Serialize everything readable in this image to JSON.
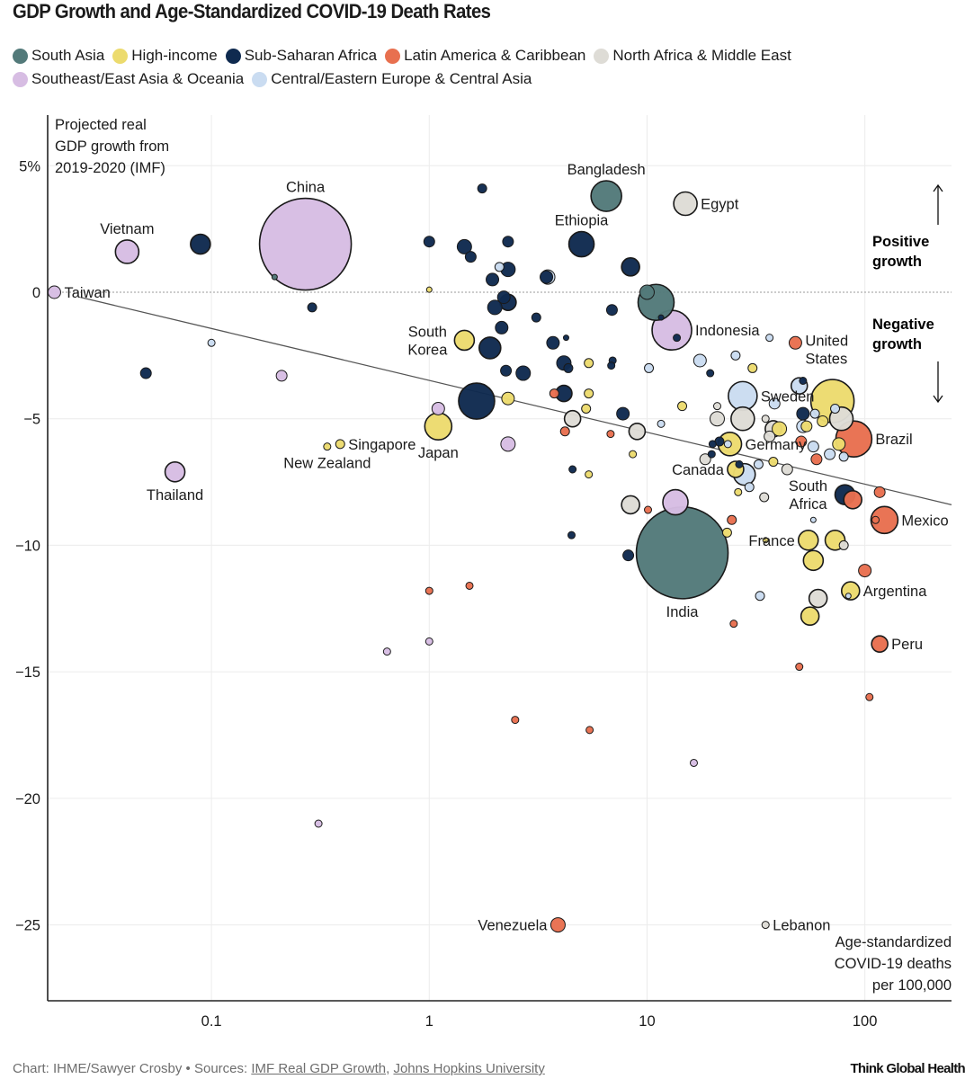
{
  "title": "GDP Growth and Age-Standardized COVID-19 Death Rates",
  "legend": [
    {
      "key": "south_asia",
      "label": "South Asia",
      "color": "#537a7a"
    },
    {
      "key": "high_income",
      "label": "High-income",
      "color": "#ecdb6e"
    },
    {
      "key": "ssa",
      "label": "Sub-Saharan Africa",
      "color": "#0f2a4f"
    },
    {
      "key": "latam",
      "label": "Latin America & Caribbean",
      "color": "#e8704f"
    },
    {
      "key": "mena",
      "label": "North Africa & Middle East",
      "color": "#dedcd6"
    },
    {
      "key": "seasia",
      "label": "Southeast/East Asia & Oceania",
      "color": "#d7bde3"
    },
    {
      "key": "cee",
      "label": "Central/Eastern Europe & Central Asia",
      "color": "#cadcf1"
    }
  ],
  "annotations": {
    "positive_growth": [
      "Positive",
      "growth"
    ],
    "negative_growth": [
      "Negative",
      "growth"
    ]
  },
  "footer": {
    "prefix": "Chart: IHME/Sawyer Crosby • Sources: ",
    "link1": "IMF Real GDP Growth",
    "separator": ", ",
    "link2": "Johns Hopkins University",
    "brand": "Think Global Health"
  },
  "chart_data": {
    "type": "scatter",
    "subtype": "bubble",
    "title": "GDP Growth and Age-Standardized COVID-19 Death Rates",
    "ylabel": [
      "Projected real",
      "GDP growth from",
      "2019-2020 (IMF)"
    ],
    "xlabel": [
      "Age-standardized",
      "COVID-19 deaths",
      "per 100,000"
    ],
    "xscale": "log",
    "xlim": [
      0.0177,
      250
    ],
    "ylim": [
      -28,
      7
    ],
    "xticks": [
      {
        "v": 0.1,
        "label": "0.1"
      },
      {
        "v": 1,
        "label": "1"
      },
      {
        "v": 10,
        "label": "10"
      },
      {
        "v": 100,
        "label": "100"
      }
    ],
    "yticks": [
      {
        "v": 5,
        "label": "5%"
      },
      {
        "v": 0,
        "label": "0"
      },
      {
        "v": -5,
        "label": "−5"
      },
      {
        "v": -10,
        "label": "−10"
      },
      {
        "v": -15,
        "label": "−15"
      },
      {
        "v": -20,
        "label": "−20"
      },
      {
        "v": -25,
        "label": "−25"
      }
    ],
    "grid": true,
    "zero_line": "dotted",
    "trendline": {
      "x0": 0.025,
      "y0": -0.2,
      "x1": 250,
      "y1": -8.4
    },
    "legend_position": "top",
    "size_note": "bubble area proportional to population",
    "points": [
      {
        "x": 0.019,
        "y": 0.0,
        "r": 7,
        "g": "seasia",
        "label": "Taiwan",
        "lpos": "right"
      },
      {
        "x": 0.041,
        "y": 1.6,
        "r": 13,
        "g": "seasia",
        "label": "Vietnam",
        "lpos": "top"
      },
      {
        "x": 0.089,
        "y": 1.9,
        "r": 11,
        "g": "ssa"
      },
      {
        "x": 0.27,
        "y": 1.9,
        "r": 51,
        "g": "seasia",
        "label": "China",
        "lpos": "top"
      },
      {
        "x": 0.195,
        "y": 0.6,
        "r": 3,
        "g": "south_asia"
      },
      {
        "x": 0.29,
        "y": -0.6,
        "r": 5,
        "g": "ssa"
      },
      {
        "x": 0.05,
        "y": -3.2,
        "r": 6,
        "g": "ssa"
      },
      {
        "x": 0.1,
        "y": -2.0,
        "r": 4,
        "g": "cee"
      },
      {
        "x": 0.21,
        "y": -3.3,
        "r": 6,
        "g": "seasia"
      },
      {
        "x": 0.068,
        "y": -7.1,
        "r": 11,
        "g": "seasia",
        "label": "Thailand",
        "lpos": "bottom"
      },
      {
        "x": 0.34,
        "y": -6.1,
        "r": 4,
        "g": "high_income",
        "label": "New Zealand",
        "lpos": "bottom"
      },
      {
        "x": 0.39,
        "y": -6.0,
        "r": 5,
        "g": "high_income",
        "label": "Singapore",
        "lpos": "right"
      },
      {
        "x": 1.1,
        "y": -4.6,
        "r": 7,
        "g": "seasia"
      },
      {
        "x": 1.1,
        "y": -5.3,
        "r": 15,
        "g": "high_income",
        "label": "Japan",
        "lpos": "bottom"
      },
      {
        "x": 1.45,
        "y": -1.9,
        "r": 11,
        "g": "high_income",
        "label": "South Korea",
        "lpos": "left"
      },
      {
        "x": 1.65,
        "y": -4.3,
        "r": 20,
        "g": "ssa"
      },
      {
        "x": 2.3,
        "y": -4.2,
        "r": 7,
        "g": "high_income"
      },
      {
        "x": 2.3,
        "y": -6.0,
        "r": 8,
        "g": "seasia"
      },
      {
        "x": 1.0,
        "y": 0.1,
        "r": 3,
        "g": "high_income"
      },
      {
        "x": 1.0,
        "y": 2.0,
        "r": 6,
        "g": "ssa"
      },
      {
        "x": 1.75,
        "y": 4.1,
        "r": 5,
        "g": "ssa"
      },
      {
        "x": 1.45,
        "y": 1.8,
        "r": 8,
        "g": "ssa"
      },
      {
        "x": 1.55,
        "y": 1.4,
        "r": 6,
        "g": "ssa"
      },
      {
        "x": 2.3,
        "y": 2.0,
        "r": 6,
        "g": "ssa"
      },
      {
        "x": 2.1,
        "y": 1.0,
        "r": 5,
        "g": "cee"
      },
      {
        "x": 2.3,
        "y": 0.9,
        "r": 8,
        "g": "ssa"
      },
      {
        "x": 1.95,
        "y": 0.5,
        "r": 7,
        "g": "ssa"
      },
      {
        "x": 2.2,
        "y": -0.2,
        "r": 7,
        "g": "ssa"
      },
      {
        "x": 2.0,
        "y": -0.6,
        "r": 8,
        "g": "ssa"
      },
      {
        "x": 2.3,
        "y": -0.4,
        "r": 9,
        "g": "ssa"
      },
      {
        "x": 2.15,
        "y": -1.4,
        "r": 7,
        "g": "ssa"
      },
      {
        "x": 1.9,
        "y": -2.2,
        "r": 12,
        "g": "ssa"
      },
      {
        "x": 2.25,
        "y": -3.1,
        "r": 6,
        "g": "ssa"
      },
      {
        "x": 2.7,
        "y": -3.2,
        "r": 8,
        "g": "ssa"
      },
      {
        "x": 3.5,
        "y": 0.6,
        "r": 8,
        "g": "cee"
      },
      {
        "x": 3.45,
        "y": 0.6,
        "r": 7,
        "g": "ssa"
      },
      {
        "x": 3.1,
        "y": -1.0,
        "r": 5,
        "g": "ssa"
      },
      {
        "x": 3.7,
        "y": -2.0,
        "r": 7,
        "g": "ssa"
      },
      {
        "x": 4.25,
        "y": -1.8,
        "r": 3,
        "g": "ssa"
      },
      {
        "x": 4.15,
        "y": -2.8,
        "r": 8,
        "g": "ssa"
      },
      {
        "x": 4.35,
        "y": -3.0,
        "r": 5,
        "g": "ssa"
      },
      {
        "x": 3.75,
        "y": -4.0,
        "r": 5,
        "g": "latam"
      },
      {
        "x": 4.15,
        "y": -4.0,
        "r": 9,
        "g": "ssa"
      },
      {
        "x": 5.4,
        "y": -2.8,
        "r": 5,
        "g": "high_income"
      },
      {
        "x": 6.95,
        "y": -2.7,
        "r": 4,
        "g": "ssa"
      },
      {
        "x": 6.85,
        "y": -2.9,
        "r": 4,
        "g": "ssa"
      },
      {
        "x": 5.4,
        "y": -4.0,
        "r": 5,
        "g": "high_income"
      },
      {
        "x": 5.25,
        "y": -4.6,
        "r": 5,
        "g": "high_income"
      },
      {
        "x": 4.55,
        "y": -5.0,
        "r": 9,
        "g": "mena"
      },
      {
        "x": 4.2,
        "y": -5.5,
        "r": 5,
        "g": "latam"
      },
      {
        "x": 6.9,
        "y": -0.7,
        "r": 6,
        "g": "ssa"
      },
      {
        "x": 5.0,
        "y": 1.9,
        "r": 14,
        "g": "ssa",
        "label": "Ethiopia",
        "lpos": "top"
      },
      {
        "x": 6.5,
        "y": 3.8,
        "r": 17,
        "g": "south_asia",
        "label": "Bangladesh",
        "lpos": "top"
      },
      {
        "x": 8.4,
        "y": 1.0,
        "r": 10,
        "g": "ssa"
      },
      {
        "x": 15.0,
        "y": 3.5,
        "r": 13,
        "g": "mena",
        "label": "Egypt",
        "lpos": "right"
      },
      {
        "x": 11.0,
        "y": -0.4,
        "r": 20,
        "g": "south_asia"
      },
      {
        "x": 10.0,
        "y": 0.0,
        "r": 8,
        "g": "south_asia"
      },
      {
        "x": 13.0,
        "y": -1.5,
        "r": 22,
        "g": "seasia",
        "label": "Indonesia",
        "lpos": "right"
      },
      {
        "x": 13.7,
        "y": -1.8,
        "r": 4,
        "g": "ssa"
      },
      {
        "x": 11.6,
        "y": -1.0,
        "r": 3,
        "g": "ssa"
      },
      {
        "x": 10.2,
        "y": -3.0,
        "r": 5,
        "g": "cee"
      },
      {
        "x": 7.75,
        "y": -4.8,
        "r": 7,
        "g": "ssa"
      },
      {
        "x": 9.0,
        "y": -5.5,
        "r": 9,
        "g": "mena"
      },
      {
        "x": 6.8,
        "y": -5.6,
        "r": 4,
        "g": "latam"
      },
      {
        "x": 5.4,
        "y": -7.2,
        "r": 4,
        "g": "high_income"
      },
      {
        "x": 4.55,
        "y": -7.0,
        "r": 4,
        "g": "ssa"
      },
      {
        "x": 8.6,
        "y": -6.4,
        "r": 4,
        "g": "high_income"
      },
      {
        "x": 11.6,
        "y": -5.2,
        "r": 4,
        "g": "cee"
      },
      {
        "x": 4.5,
        "y": -9.6,
        "r": 4,
        "g": "ssa"
      },
      {
        "x": 8.2,
        "y": -10.4,
        "r": 6,
        "g": "ssa"
      },
      {
        "x": 8.4,
        "y": -8.4,
        "r": 10,
        "g": "mena"
      },
      {
        "x": 10.1,
        "y": -8.6,
        "r": 4,
        "g": "latam"
      },
      {
        "x": 13.5,
        "y": -8.3,
        "r": 14,
        "g": "seasia"
      },
      {
        "x": 14.5,
        "y": -10.3,
        "r": 51,
        "g": "south_asia",
        "label": "India",
        "lpos": "bottom"
      },
      {
        "x": 23.3,
        "y": -9.5,
        "r": 5,
        "g": "high_income"
      },
      {
        "x": 24.5,
        "y": -9.0,
        "r": 5,
        "g": "latam"
      },
      {
        "x": 14.5,
        "y": -4.5,
        "r": 5,
        "g": "high_income"
      },
      {
        "x": 17.5,
        "y": -2.7,
        "r": 7,
        "g": "cee"
      },
      {
        "x": 19.5,
        "y": -3.2,
        "r": 4,
        "g": "ssa"
      },
      {
        "x": 21.0,
        "y": -5.0,
        "r": 8,
        "g": "mena"
      },
      {
        "x": 21.0,
        "y": -4.5,
        "r": 4,
        "g": "mena"
      },
      {
        "x": 25.5,
        "y": -2.5,
        "r": 5,
        "g": "cee"
      },
      {
        "x": 27.5,
        "y": -4.1,
        "r": 16,
        "g": "cee",
        "label": "Sweden",
        "lpos": "right"
      },
      {
        "x": 27.5,
        "y": -5.0,
        "r": 13,
        "g": "mena"
      },
      {
        "x": 30.5,
        "y": -3.0,
        "r": 5,
        "g": "high_income"
      },
      {
        "x": 24.0,
        "y": -6.0,
        "r": 13,
        "g": "high_income",
        "label": "Germany",
        "lpos": "right"
      },
      {
        "x": 23.5,
        "y": -6.0,
        "r": 4,
        "g": "cee"
      },
      {
        "x": 20.0,
        "y": -6.0,
        "r": 4,
        "g": "ssa"
      },
      {
        "x": 21.5,
        "y": -5.9,
        "r": 5,
        "g": "ssa"
      },
      {
        "x": 18.5,
        "y": -6.6,
        "r": 6,
        "g": "mena"
      },
      {
        "x": 19.8,
        "y": -6.4,
        "r": 4,
        "g": "ssa"
      },
      {
        "x": 25.5,
        "y": -7.0,
        "r": 9,
        "g": "high_income",
        "label": "Canada",
        "lpos": "left"
      },
      {
        "x": 26.5,
        "y": -6.8,
        "r": 4,
        "g": "ssa"
      },
      {
        "x": 28.0,
        "y": -7.2,
        "r": 12,
        "g": "cee"
      },
      {
        "x": 29.5,
        "y": -7.7,
        "r": 5,
        "g": "cee"
      },
      {
        "x": 26.2,
        "y": -7.9,
        "r": 4,
        "g": "high_income"
      },
      {
        "x": 32.5,
        "y": -6.8,
        "r": 5,
        "g": "cee"
      },
      {
        "x": 34.5,
        "y": -8.1,
        "r": 5,
        "g": "mena"
      },
      {
        "x": 36.5,
        "y": -5.7,
        "r": 6,
        "g": "mena"
      },
      {
        "x": 38.0,
        "y": -5.4,
        "r": 9,
        "g": "mena"
      },
      {
        "x": 35.0,
        "y": -5.0,
        "r": 4,
        "g": "mena"
      },
      {
        "x": 38.5,
        "y": -4.4,
        "r": 6,
        "g": "cee"
      },
      {
        "x": 40.5,
        "y": -5.4,
        "r": 8,
        "g": "high_income"
      },
      {
        "x": 38.0,
        "y": -6.7,
        "r": 5,
        "g": "high_income"
      },
      {
        "x": 44.0,
        "y": -7.0,
        "r": 6,
        "g": "mena"
      },
      {
        "x": 36.5,
        "y": -1.8,
        "r": 4,
        "g": "cee"
      },
      {
        "x": 48.0,
        "y": -2.0,
        "r": 7,
        "g": "latam",
        "label": "United States",
        "lpos": "right"
      },
      {
        "x": 50.0,
        "y": -3.7,
        "r": 9,
        "g": "cee"
      },
      {
        "x": 52.0,
        "y": -3.5,
        "r": 4,
        "g": "ssa"
      },
      {
        "x": 52.0,
        "y": -4.8,
        "r": 7,
        "g": "ssa"
      },
      {
        "x": 52.0,
        "y": -5.3,
        "r": 7,
        "g": "cee"
      },
      {
        "x": 54.0,
        "y": -5.3,
        "r": 6,
        "g": "high_income"
      },
      {
        "x": 51.0,
        "y": -5.9,
        "r": 6,
        "g": "latam"
      },
      {
        "x": 58.0,
        "y": -6.1,
        "r": 6,
        "g": "cee"
      },
      {
        "x": 60.0,
        "y": -6.6,
        "r": 6,
        "g": "latam"
      },
      {
        "x": 71.0,
        "y": -4.3,
        "r": 24,
        "g": "high_income"
      },
      {
        "x": 59.0,
        "y": -4.8,
        "r": 5,
        "g": "cee"
      },
      {
        "x": 64.0,
        "y": -5.1,
        "r": 6,
        "g": "high_income"
      },
      {
        "x": 73.0,
        "y": -4.6,
        "r": 5,
        "g": "cee"
      },
      {
        "x": 78.0,
        "y": -5.0,
        "r": 13,
        "g": "mena"
      },
      {
        "x": 76.0,
        "y": -6.0,
        "r": 7,
        "g": "high_income"
      },
      {
        "x": 69.0,
        "y": -6.4,
        "r": 6,
        "g": "cee"
      },
      {
        "x": 80.0,
        "y": -6.5,
        "r": 5,
        "g": "cee"
      },
      {
        "x": 89.0,
        "y": -5.8,
        "r": 20,
        "g": "latam",
        "label": "Brazil",
        "lpos": "right"
      },
      {
        "x": 81.0,
        "y": -8.0,
        "r": 11,
        "g": "ssa",
        "label": "South Africa",
        "lpos": "left"
      },
      {
        "x": 88.0,
        "y": -8.2,
        "r": 10,
        "g": "latam"
      },
      {
        "x": 117.0,
        "y": -7.9,
        "r": 6,
        "g": "latam"
      },
      {
        "x": 123.0,
        "y": -9.0,
        "r": 15,
        "g": "latam",
        "label": "Mexico",
        "lpos": "right"
      },
      {
        "x": 112.0,
        "y": -9.0,
        "r": 4,
        "g": "latam"
      },
      {
        "x": 58.0,
        "y": -9.0,
        "r": 3,
        "g": "cee"
      },
      {
        "x": 55.0,
        "y": -9.8,
        "r": 11,
        "g": "high_income",
        "label": "France",
        "lpos": "left"
      },
      {
        "x": 73.0,
        "y": -9.8,
        "r": 11,
        "g": "high_income"
      },
      {
        "x": 80.0,
        "y": -10.0,
        "r": 5,
        "g": "mena"
      },
      {
        "x": 58.0,
        "y": -10.6,
        "r": 11,
        "g": "high_income"
      },
      {
        "x": 35.0,
        "y": -9.8,
        "r": 3,
        "g": "high_income"
      },
      {
        "x": 100.0,
        "y": -11.0,
        "r": 7,
        "g": "latam"
      },
      {
        "x": 86.0,
        "y": -11.8,
        "r": 10,
        "g": "high_income",
        "label": "Argentina",
        "lpos": "right"
      },
      {
        "x": 84.0,
        "y": -12.0,
        "r": 3,
        "g": "cee"
      },
      {
        "x": 61.0,
        "y": -12.1,
        "r": 10,
        "g": "mena"
      },
      {
        "x": 56.0,
        "y": -12.8,
        "r": 10,
        "g": "high_income"
      },
      {
        "x": 33.0,
        "y": -12.0,
        "r": 5,
        "g": "cee"
      },
      {
        "x": 25.0,
        "y": -13.1,
        "r": 4,
        "g": "latam"
      },
      {
        "x": 117.0,
        "y": -13.9,
        "r": 9,
        "g": "latam",
        "label": "Peru",
        "lpos": "right"
      },
      {
        "x": 50.0,
        "y": -14.8,
        "r": 4,
        "g": "latam"
      },
      {
        "x": 105.0,
        "y": -16.0,
        "r": 4,
        "g": "latam"
      },
      {
        "x": 1.0,
        "y": -11.8,
        "r": 4,
        "g": "latam"
      },
      {
        "x": 1.53,
        "y": -11.6,
        "r": 4,
        "g": "latam"
      },
      {
        "x": 1.0,
        "y": -13.8,
        "r": 4,
        "g": "seasia"
      },
      {
        "x": 0.64,
        "y": -14.2,
        "r": 4,
        "g": "seasia"
      },
      {
        "x": 2.48,
        "y": -16.9,
        "r": 4,
        "g": "latam"
      },
      {
        "x": 5.45,
        "y": -17.3,
        "r": 4,
        "g": "latam"
      },
      {
        "x": 16.4,
        "y": -18.6,
        "r": 4,
        "g": "seasia"
      },
      {
        "x": 0.31,
        "y": -21.0,
        "r": 4,
        "g": "seasia"
      },
      {
        "x": 3.9,
        "y": -25.0,
        "r": 8,
        "g": "latam",
        "label": "Venezuela",
        "lpos": "left"
      },
      {
        "x": 35.0,
        "y": -25.0,
        "r": 4,
        "g": "mena",
        "label": "Lebanon",
        "lpos": "right"
      }
    ]
  }
}
